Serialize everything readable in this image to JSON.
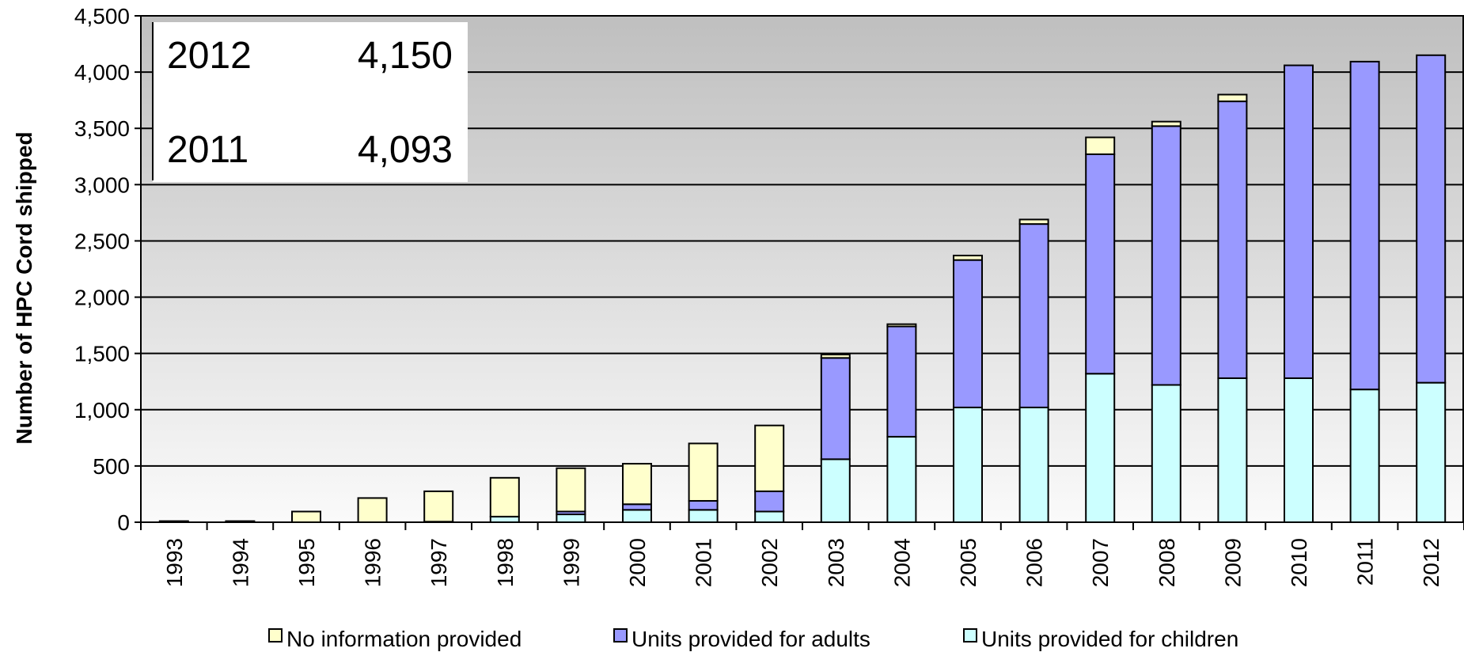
{
  "chart_data": {
    "type": "bar",
    "stacked": true,
    "categories": [
      "1993",
      "1994",
      "1995",
      "1996",
      "1997",
      "1998",
      "1999",
      "2000",
      "2001",
      "2002",
      "2003",
      "2004",
      "2005",
      "2006",
      "2007",
      "2008",
      "2009",
      "2010",
      "2011",
      "2012"
    ],
    "series": [
      {
        "name": "Units provided for children",
        "color": "#ccffff",
        "values": [
          0,
          0,
          0,
          0,
          5,
          50,
          70,
          110,
          110,
          95,
          560,
          760,
          1020,
          1020,
          1320,
          1220,
          1280,
          1280,
          1180,
          1240
        ]
      },
      {
        "name": "Units provided for adults",
        "color": "#9999ff",
        "values": [
          0,
          0,
          0,
          0,
          0,
          0,
          25,
          50,
          80,
          180,
          900,
          980,
          1310,
          1630,
          1950,
          2300,
          2460,
          2780,
          2913,
          2910
        ]
      },
      {
        "name": "No information provided",
        "color": "#ffffcc",
        "values": [
          10,
          10,
          95,
          215,
          270,
          345,
          385,
          360,
          510,
          585,
          30,
          20,
          40,
          40,
          150,
          40,
          60,
          0,
          0,
          0
        ]
      }
    ],
    "legend_order": [
      2,
      1,
      0
    ],
    "ylabel": "Number of HPC Cord shipped",
    "xlabel": "",
    "ylim": [
      0,
      4500
    ],
    "yticks": [
      0,
      500,
      1000,
      1500,
      2000,
      2500,
      3000,
      3500,
      4000,
      4500
    ],
    "ytick_labels": [
      "0",
      "500",
      "1,000",
      "1,500",
      "2,000",
      "2,500",
      "3,000",
      "3,500",
      "4,000",
      "4,500"
    ],
    "grid": true,
    "legend_position": "bottom",
    "inset_table": [
      {
        "year": "2012",
        "value": "4,150"
      },
      {
        "year": "2011",
        "value": "4,093"
      }
    ]
  }
}
